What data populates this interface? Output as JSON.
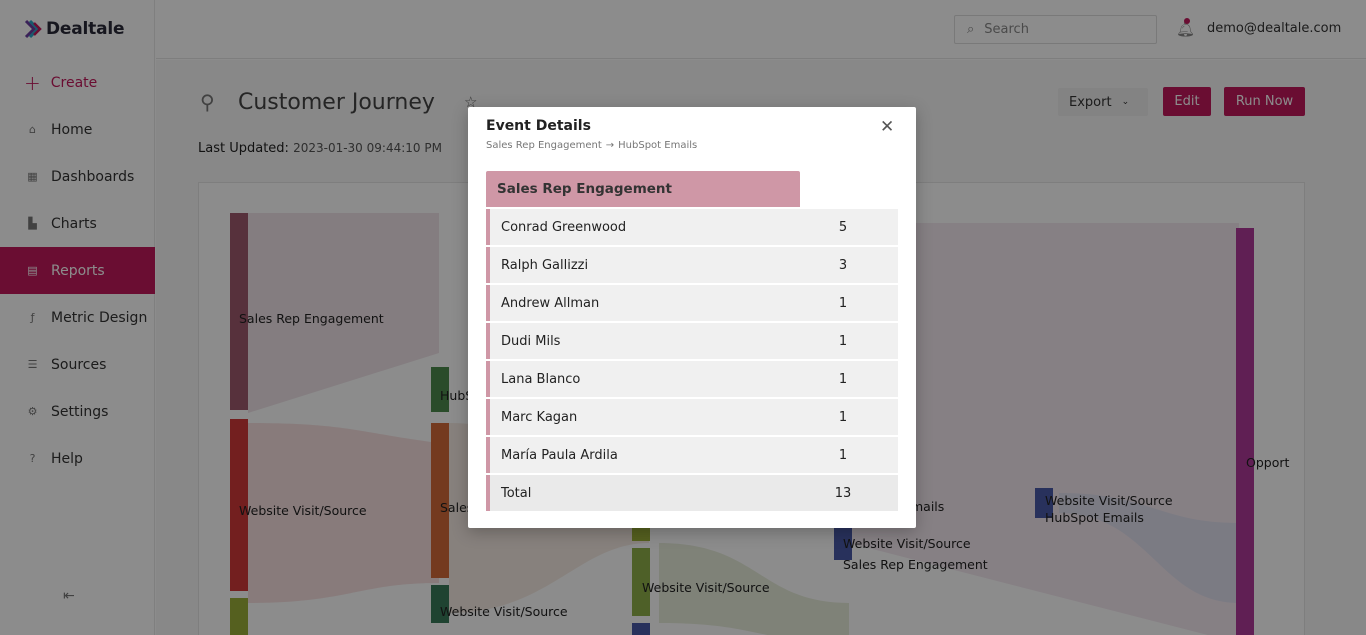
{
  "app": {
    "name": "Dealtale"
  },
  "sidebar": {
    "create_label": "Create",
    "items": [
      {
        "label": "Home",
        "icon": "home-icon"
      },
      {
        "label": "Dashboards",
        "icon": "dashboard-icon"
      },
      {
        "label": "Charts",
        "icon": "chart-icon"
      },
      {
        "label": "Reports",
        "icon": "report-icon",
        "active": true
      },
      {
        "label": "Metric Design",
        "icon": "function-icon"
      },
      {
        "label": "Sources",
        "icon": "database-icon"
      },
      {
        "label": "Settings",
        "icon": "gear-icon"
      },
      {
        "label": "Help",
        "icon": "help-icon"
      }
    ]
  },
  "topbar": {
    "search_placeholder": "Search",
    "user_email": "demo@dealtale.com"
  },
  "page": {
    "title": "Customer Journey",
    "export_label": "Export",
    "edit_label": "Edit",
    "run_label": "Run Now",
    "last_updated_label": "Last Updated:",
    "last_updated_value": "2023-01-30 09:44:10 PM"
  },
  "sankey_labels": {
    "sales_rep_engagement_1": "Sales Rep Engagement",
    "website_visit_1": "Website Visit/Source",
    "hubspot_partial": "HubS",
    "sales_partial": "Sales",
    "website_visit_2": "Website Visit/Source",
    "website_visit_3": "Website Visit/Source",
    "emails_partial": "mails",
    "website_visit_4": "Website Visit/Source",
    "sales_rep_engagement_2": "Sales Rep Engagement",
    "website_visit_5": "Website Visit/Source",
    "hubspot_emails": "HubSpot Emails",
    "opport_partial": "Opport"
  },
  "colors": {
    "accent": "#c2185b",
    "table_header": "#cf97a6"
  },
  "modal": {
    "title": "Event Details",
    "breadcrumb_from": "Sales Rep Engagement",
    "breadcrumb_arrow": "→",
    "breadcrumb_to": "HubSpot Emails",
    "table_header": "Sales Rep Engagement",
    "rows": [
      {
        "name": "Conrad Greenwood",
        "count": "5"
      },
      {
        "name": "Ralph Gallizzi",
        "count": "3"
      },
      {
        "name": "Andrew Allman",
        "count": "1"
      },
      {
        "name": "Dudi Mils",
        "count": "1"
      },
      {
        "name": "Lana Blanco",
        "count": "1"
      },
      {
        "name": "Marc Kagan",
        "count": "1"
      },
      {
        "name": "María Paula Ardila",
        "count": "1"
      }
    ],
    "total_label": "Total",
    "total_value": "13"
  }
}
